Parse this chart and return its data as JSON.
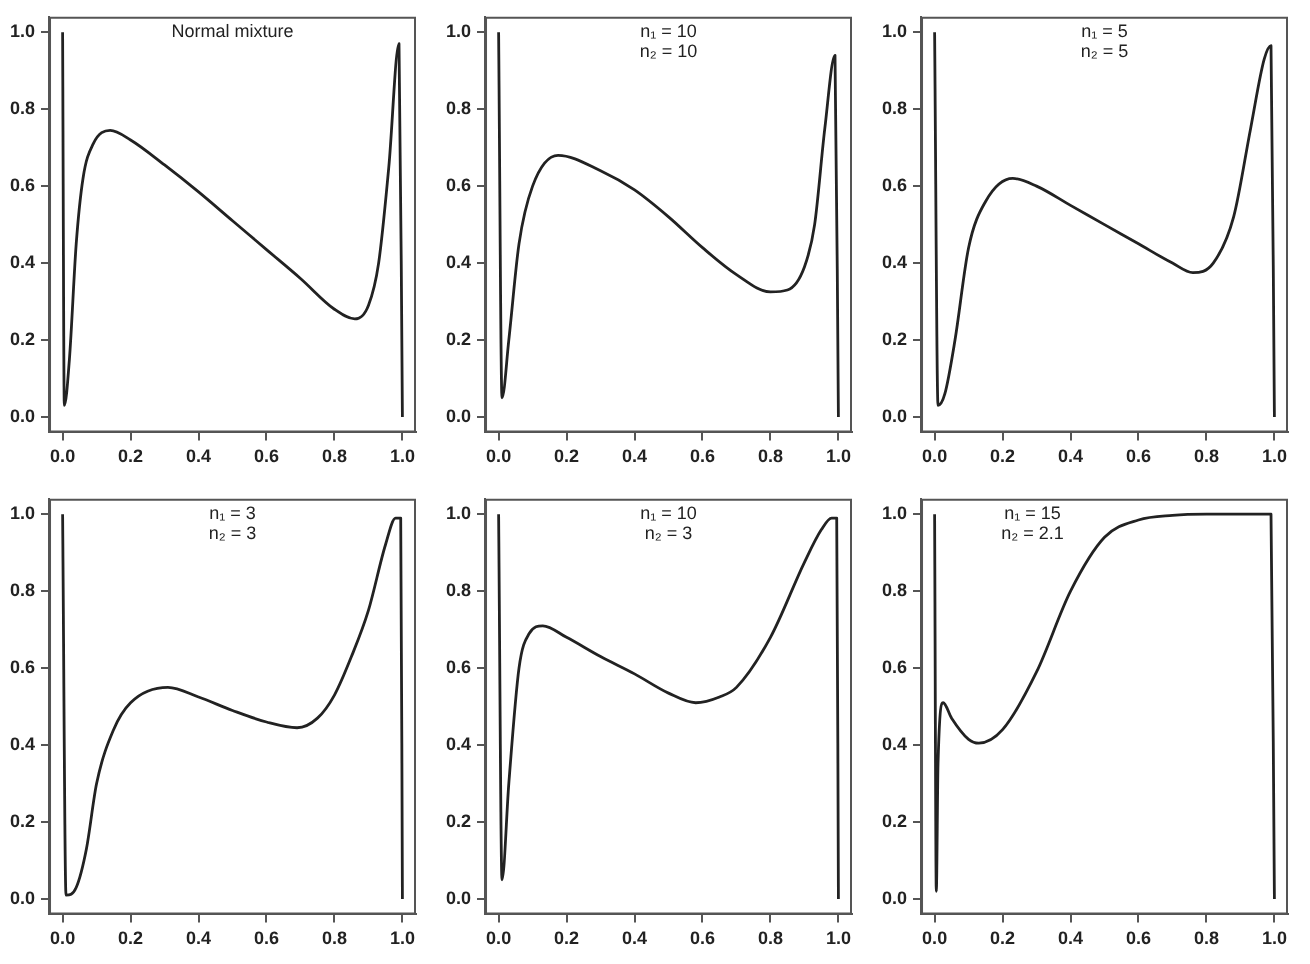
{
  "chart_data": [
    {
      "type": "line",
      "title": "Normal mixture",
      "xlim": [
        -0.04,
        1.04
      ],
      "ylim": [
        -0.04,
        1.04
      ],
      "xticks": [
        {
          "value": 0,
          "label": "0.0"
        },
        {
          "value": 0.2,
          "label": "0.2"
        },
        {
          "value": 0.4,
          "label": "0.4"
        },
        {
          "value": 0.6,
          "label": "0.6"
        },
        {
          "value": 0.8,
          "label": "0.8"
        },
        {
          "value": 1,
          "label": "1.0"
        }
      ],
      "yticks": [
        {
          "value": 0,
          "label": "0.0"
        },
        {
          "value": 0.2,
          "label": "0.2"
        },
        {
          "value": 0.4,
          "label": "0.4"
        },
        {
          "value": 0.6,
          "label": "0.6"
        },
        {
          "value": 0.8,
          "label": "0.8"
        },
        {
          "value": 1,
          "label": "1.0"
        }
      ],
      "series": [
        {
          "color": "#222222",
          "x": [
            0,
            0.005,
            0.02,
            0.04,
            0.06,
            0.09,
            0.14,
            0.2,
            0.3,
            0.4,
            0.5,
            0.6,
            0.7,
            0.8,
            0.86,
            0.9,
            0.93,
            0.96,
            0.99,
            1
          ],
          "values": [
            1,
            0.03,
            0.15,
            0.45,
            0.62,
            0.71,
            0.745,
            0.72,
            0.655,
            0.585,
            0.51,
            0.435,
            0.36,
            0.28,
            0.255,
            0.29,
            0.4,
            0.65,
            0.97,
            0
          ]
        }
      ]
    },
    {
      "type": "line",
      "title": "n₁ = 10",
      "subtitle": "n₂ = 10",
      "xlim": [
        -0.04,
        1.04
      ],
      "ylim": [
        -0.04,
        1.04
      ],
      "xticks": [
        {
          "value": 0,
          "label": "0.0"
        },
        {
          "value": 0.2,
          "label": "0.2"
        },
        {
          "value": 0.4,
          "label": "0.4"
        },
        {
          "value": 0.6,
          "label": "0.6"
        },
        {
          "value": 0.8,
          "label": "0.8"
        },
        {
          "value": 1,
          "label": "1.0"
        }
      ],
      "yticks": [
        {
          "value": 0,
          "label": "0.0"
        },
        {
          "value": 0.2,
          "label": "0.2"
        },
        {
          "value": 0.4,
          "label": "0.4"
        },
        {
          "value": 0.6,
          "label": "0.6"
        },
        {
          "value": 0.8,
          "label": "0.8"
        },
        {
          "value": 1,
          "label": "1.0"
        }
      ],
      "series": [
        {
          "color": "#222222",
          "x": [
            0,
            0.01,
            0.03,
            0.06,
            0.1,
            0.175,
            0.3,
            0.4,
            0.5,
            0.6,
            0.7,
            0.8,
            0.85,
            0.9,
            0.93,
            0.96,
            0.99,
            1
          ],
          "values": [
            1,
            0.05,
            0.2,
            0.45,
            0.6,
            0.68,
            0.64,
            0.59,
            0.52,
            0.44,
            0.37,
            0.325,
            0.33,
            0.39,
            0.5,
            0.75,
            0.94,
            0
          ]
        }
      ]
    },
    {
      "type": "line",
      "title": "n₁ = 5",
      "subtitle": "n₂ = 5",
      "xlim": [
        -0.04,
        1.04
      ],
      "ylim": [
        -0.04,
        1.04
      ],
      "xticks": [
        {
          "value": 0,
          "label": "0.0"
        },
        {
          "value": 0.2,
          "label": "0.2"
        },
        {
          "value": 0.4,
          "label": "0.4"
        },
        {
          "value": 0.6,
          "label": "0.6"
        },
        {
          "value": 0.8,
          "label": "0.8"
        },
        {
          "value": 1,
          "label": "1.0"
        }
      ],
      "yticks": [
        {
          "value": 0,
          "label": "0.0"
        },
        {
          "value": 0.2,
          "label": "0.2"
        },
        {
          "value": 0.4,
          "label": "0.4"
        },
        {
          "value": 0.6,
          "label": "0.6"
        },
        {
          "value": 0.8,
          "label": "0.8"
        },
        {
          "value": 1,
          "label": "1.0"
        }
      ],
      "series": [
        {
          "color": "#222222",
          "x": [
            0,
            0.01,
            0.03,
            0.06,
            0.1,
            0.15,
            0.23,
            0.3,
            0.4,
            0.5,
            0.6,
            0.7,
            0.76,
            0.82,
            0.88,
            0.93,
            0.97,
            0.99,
            1
          ],
          "values": [
            1,
            0.03,
            0.06,
            0.2,
            0.44,
            0.56,
            0.62,
            0.6,
            0.55,
            0.5,
            0.45,
            0.4,
            0.375,
            0.4,
            0.52,
            0.75,
            0.93,
            0.965,
            0
          ]
        }
      ]
    },
    {
      "type": "line",
      "title": "n₁ = 3",
      "subtitle": "n₂ = 3",
      "xlim": [
        -0.04,
        1.04
      ],
      "ylim": [
        -0.04,
        1.04
      ],
      "xticks": [
        {
          "value": 0,
          "label": "0.0"
        },
        {
          "value": 0.2,
          "label": "0.2"
        },
        {
          "value": 0.4,
          "label": "0.4"
        },
        {
          "value": 0.6,
          "label": "0.6"
        },
        {
          "value": 0.8,
          "label": "0.8"
        },
        {
          "value": 1,
          "label": "1.0"
        }
      ],
      "yticks": [
        {
          "value": 0,
          "label": "0.0"
        },
        {
          "value": 0.2,
          "label": "0.2"
        },
        {
          "value": 0.4,
          "label": "0.4"
        },
        {
          "value": 0.6,
          "label": "0.6"
        },
        {
          "value": 0.8,
          "label": "0.8"
        },
        {
          "value": 1,
          "label": "1.0"
        }
      ],
      "series": [
        {
          "color": "#222222",
          "x": [
            0,
            0.01,
            0.04,
            0.07,
            0.1,
            0.15,
            0.2,
            0.31,
            0.4,
            0.5,
            0.6,
            0.69,
            0.75,
            0.8,
            0.85,
            0.9,
            0.95,
            0.98,
            0.995,
            1
          ],
          "values": [
            1,
            0.01,
            0.03,
            0.13,
            0.3,
            0.44,
            0.51,
            0.55,
            0.525,
            0.49,
            0.46,
            0.445,
            0.47,
            0.53,
            0.63,
            0.75,
            0.92,
            0.99,
            0.99,
            0
          ]
        }
      ]
    },
    {
      "type": "line",
      "title": "n₁ = 10",
      "subtitle": "n₂ = 3",
      "xlim": [
        -0.04,
        1.04
      ],
      "ylim": [
        -0.04,
        1.04
      ],
      "xticks": [
        {
          "value": 0,
          "label": "0.0"
        },
        {
          "value": 0.2,
          "label": "0.2"
        },
        {
          "value": 0.4,
          "label": "0.4"
        },
        {
          "value": 0.6,
          "label": "0.6"
        },
        {
          "value": 0.8,
          "label": "0.8"
        },
        {
          "value": 1,
          "label": "1.0"
        }
      ],
      "yticks": [
        {
          "value": 0,
          "label": "0.0"
        },
        {
          "value": 0.2,
          "label": "0.2"
        },
        {
          "value": 0.4,
          "label": "0.4"
        },
        {
          "value": 0.6,
          "label": "0.6"
        },
        {
          "value": 0.8,
          "label": "0.8"
        },
        {
          "value": 1,
          "label": "1.0"
        }
      ],
      "series": [
        {
          "color": "#222222",
          "x": [
            0,
            0.01,
            0.03,
            0.06,
            0.09,
            0.13,
            0.2,
            0.3,
            0.4,
            0.5,
            0.58,
            0.65,
            0.7,
            0.8,
            0.9,
            0.95,
            0.98,
            0.995,
            1
          ],
          "values": [
            1,
            0.05,
            0.3,
            0.6,
            0.69,
            0.71,
            0.68,
            0.63,
            0.585,
            0.535,
            0.51,
            0.525,
            0.55,
            0.68,
            0.875,
            0.96,
            0.99,
            0.99,
            0
          ]
        }
      ]
    },
    {
      "type": "line",
      "title": "n₁ = 15",
      "subtitle": "n₂ = 2.1",
      "xlim": [
        -0.04,
        1.04
      ],
      "ylim": [
        -0.04,
        1.04
      ],
      "xticks": [
        {
          "value": 0,
          "label": "0.0"
        },
        {
          "value": 0.2,
          "label": "0.2"
        },
        {
          "value": 0.4,
          "label": "0.4"
        },
        {
          "value": 0.6,
          "label": "0.6"
        },
        {
          "value": 0.8,
          "label": "0.8"
        },
        {
          "value": 1,
          "label": "1.0"
        }
      ],
      "yticks": [
        {
          "value": 0,
          "label": "0.0"
        },
        {
          "value": 0.2,
          "label": "0.2"
        },
        {
          "value": 0.4,
          "label": "0.4"
        },
        {
          "value": 0.6,
          "label": "0.6"
        },
        {
          "value": 0.8,
          "label": "0.8"
        },
        {
          "value": 1,
          "label": "1.0"
        }
      ],
      "series": [
        {
          "color": "#222222",
          "x": [
            0,
            0.005,
            0.01,
            0.025,
            0.05,
            0.1,
            0.13,
            0.2,
            0.3,
            0.4,
            0.5,
            0.6,
            0.7,
            0.8,
            0.99,
            1
          ],
          "values": [
            1,
            0.02,
            0.35,
            0.51,
            0.47,
            0.415,
            0.405,
            0.44,
            0.59,
            0.8,
            0.94,
            0.985,
            0.997,
            1,
            1,
            0
          ]
        }
      ]
    }
  ]
}
